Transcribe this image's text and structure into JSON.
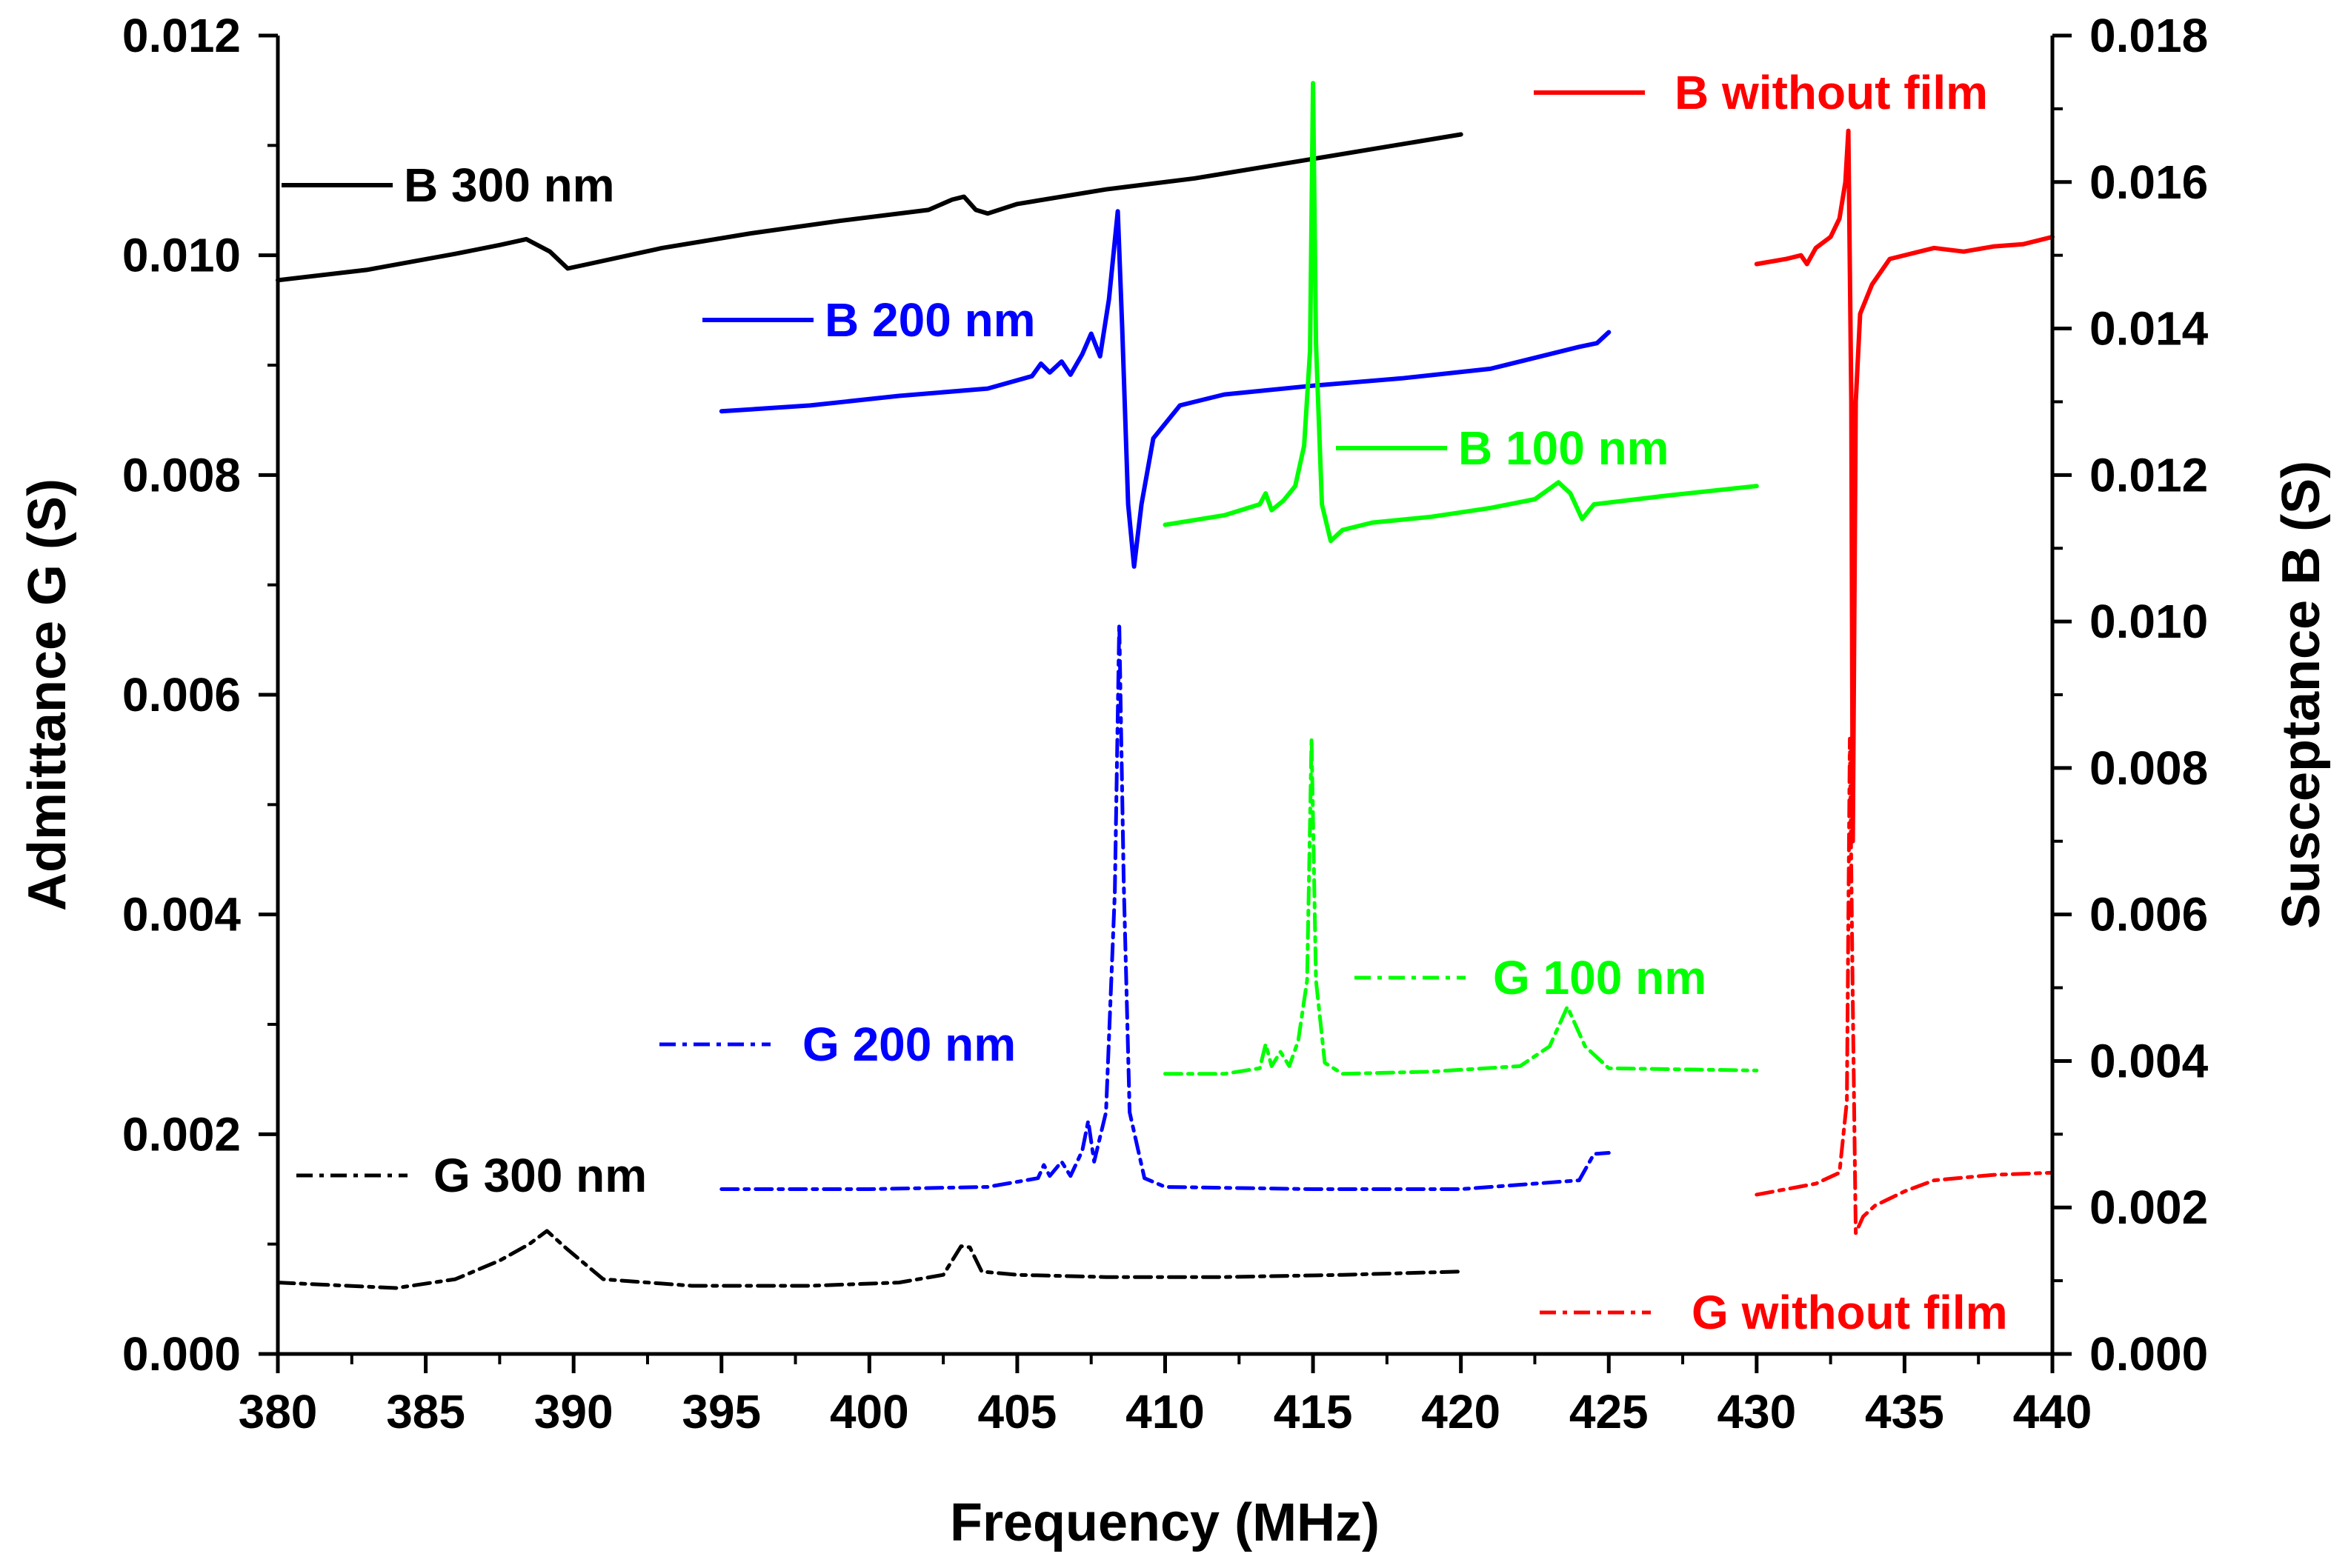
{
  "chart_data": {
    "type": "line",
    "title": "",
    "xlabel": "Frequency (MHz)",
    "ylabel_left": "Admittance G (S)",
    "ylabel_right": "Susceptance B (S)",
    "xlim": [
      380,
      440
    ],
    "ylim_left": [
      0,
      0.012
    ],
    "ylim_right": [
      0,
      0.018
    ],
    "x_ticks": [
      "380",
      "385",
      "390",
      "395",
      "400",
      "405",
      "410",
      "415",
      "420",
      "425",
      "430",
      "435",
      "440"
    ],
    "y_left_ticks": [
      "0.000",
      "0.002",
      "0.004",
      "0.006",
      "0.008",
      "0.010",
      "0.012"
    ],
    "y_right_ticks": [
      "0.000",
      "0.002",
      "0.004",
      "0.006",
      "0.008",
      "0.010",
      "0.012",
      "0.014",
      "0.016",
      "0.018"
    ],
    "grid": false,
    "series": [
      {
        "name": "B 300 nm",
        "axis": "right",
        "color": "#000000",
        "dash": "solid",
        "points": [
          [
            380,
            0.01466
          ],
          [
            383,
            0.0148
          ],
          [
            386,
            0.01502
          ],
          [
            387.5,
            0.01514
          ],
          [
            388.4,
            0.01522
          ],
          [
            389.2,
            0.01505
          ],
          [
            389.8,
            0.01482
          ],
          [
            390.5,
            0.01488
          ],
          [
            393,
            0.0151
          ],
          [
            396,
            0.0153
          ],
          [
            399,
            0.01547
          ],
          [
            402,
            0.01562
          ],
          [
            402.8,
            0.01576
          ],
          [
            403.2,
            0.0158
          ],
          [
            403.6,
            0.01562
          ],
          [
            404,
            0.01557
          ],
          [
            405,
            0.0157
          ],
          [
            408,
            0.0159
          ],
          [
            411,
            0.01605
          ],
          [
            414,
            0.01625
          ],
          [
            417,
            0.01645
          ],
          [
            420,
            0.01665
          ]
        ]
      },
      {
        "name": "G 300 nm",
        "axis": "left",
        "color": "#000000",
        "dash": "dashdot",
        "points": [
          [
            380,
            0.00065
          ],
          [
            384,
            0.0006
          ],
          [
            386,
            0.00068
          ],
          [
            387.5,
            0.00085
          ],
          [
            388.5,
            0.001
          ],
          [
            389.1,
            0.00112
          ],
          [
            389.8,
            0.00095
          ],
          [
            391,
            0.00068
          ],
          [
            394,
            0.00062
          ],
          [
            398,
            0.00062
          ],
          [
            401,
            0.00065
          ],
          [
            402.5,
            0.00072
          ],
          [
            403.1,
            0.00098
          ],
          [
            403.4,
            0.00097
          ],
          [
            403.8,
            0.00075
          ],
          [
            405,
            0.00072
          ],
          [
            408,
            0.0007
          ],
          [
            412,
            0.0007
          ],
          [
            416,
            0.00072
          ],
          [
            420,
            0.00075
          ]
        ]
      },
      {
        "name": "B 200 nm",
        "axis": "right",
        "color": "#0000ff",
        "dash": "solid",
        "points": [
          [
            395,
            0.01287
          ],
          [
            398,
            0.01295
          ],
          [
            401,
            0.01308
          ],
          [
            404,
            0.01318
          ],
          [
            405.5,
            0.01335
          ],
          [
            405.8,
            0.01352
          ],
          [
            406.1,
            0.0134
          ],
          [
            406.5,
            0.01355
          ],
          [
            406.8,
            0.01337
          ],
          [
            407.2,
            0.01365
          ],
          [
            407.5,
            0.01393
          ],
          [
            407.8,
            0.01362
          ],
          [
            408.1,
            0.0144
          ],
          [
            408.4,
            0.0156
          ],
          [
            408.55,
            0.014
          ],
          [
            408.75,
            0.0116
          ],
          [
            408.95,
            0.01075
          ],
          [
            409.2,
            0.0116
          ],
          [
            409.6,
            0.0125
          ],
          [
            410.5,
            0.01295
          ],
          [
            412,
            0.0131
          ],
          [
            415,
            0.01322
          ],
          [
            418,
            0.01332
          ],
          [
            421,
            0.01345
          ],
          [
            424,
            0.01375
          ],
          [
            424.6,
            0.0138
          ],
          [
            425,
            0.01395
          ]
        ]
      },
      {
        "name": "G 200 nm",
        "axis": "left",
        "color": "#0000ff",
        "dash": "dashdot",
        "points": [
          [
            395,
            0.0015
          ],
          [
            400,
            0.0015
          ],
          [
            404,
            0.00152
          ],
          [
            405.7,
            0.0016
          ],
          [
            405.9,
            0.00172
          ],
          [
            406.1,
            0.00162
          ],
          [
            406.5,
            0.00175
          ],
          [
            406.8,
            0.00162
          ],
          [
            407.2,
            0.00185
          ],
          [
            407.4,
            0.00212
          ],
          [
            407.6,
            0.00175
          ],
          [
            408.0,
            0.0022
          ],
          [
            408.3,
            0.0042
          ],
          [
            408.45,
            0.00665
          ],
          [
            408.6,
            0.0043
          ],
          [
            408.8,
            0.0022
          ],
          [
            409.3,
            0.0016
          ],
          [
            410,
            0.00152
          ],
          [
            415,
            0.0015
          ],
          [
            420,
            0.0015
          ],
          [
            424,
            0.00158
          ],
          [
            424.5,
            0.00182
          ],
          [
            425,
            0.00183
          ]
        ]
      },
      {
        "name": "B 100 nm",
        "axis": "right",
        "color": "#00ff00",
        "dash": "solid",
        "points": [
          [
            410,
            0.01132
          ],
          [
            412,
            0.01145
          ],
          [
            413.2,
            0.0116
          ],
          [
            413.4,
            0.01175
          ],
          [
            413.6,
            0.01152
          ],
          [
            414,
            0.01165
          ],
          [
            414.4,
            0.01185
          ],
          [
            414.7,
            0.0124
          ],
          [
            414.9,
            0.0137
          ],
          [
            415.0,
            0.01735
          ],
          [
            415.1,
            0.0138
          ],
          [
            415.3,
            0.0116
          ],
          [
            415.6,
            0.0111
          ],
          [
            416,
            0.01125
          ],
          [
            417,
            0.01135
          ],
          [
            419,
            0.01143
          ],
          [
            421,
            0.01155
          ],
          [
            422.5,
            0.01167
          ],
          [
            423.3,
            0.0119
          ],
          [
            423.7,
            0.01175
          ],
          [
            424.1,
            0.0114
          ],
          [
            424.5,
            0.0116
          ],
          [
            427,
            0.01172
          ],
          [
            430,
            0.01185
          ]
        ]
      },
      {
        "name": "G 100 nm",
        "axis": "left",
        "color": "#00ff00",
        "dash": "dashdot",
        "points": [
          [
            410,
            0.00255
          ],
          [
            412,
            0.00255
          ],
          [
            413.2,
            0.0026
          ],
          [
            413.4,
            0.00282
          ],
          [
            413.6,
            0.00262
          ],
          [
            413.9,
            0.00275
          ],
          [
            414.2,
            0.00262
          ],
          [
            414.5,
            0.00285
          ],
          [
            414.8,
            0.0034
          ],
          [
            414.95,
            0.0056
          ],
          [
            415.1,
            0.0034
          ],
          [
            415.4,
            0.00265
          ],
          [
            416,
            0.00255
          ],
          [
            419,
            0.00257
          ],
          [
            422,
            0.00262
          ],
          [
            423,
            0.0028
          ],
          [
            423.6,
            0.00316
          ],
          [
            424.2,
            0.0028
          ],
          [
            425,
            0.0026
          ],
          [
            430,
            0.00258
          ]
        ]
      },
      {
        "name": "B without film",
        "axis": "right",
        "color": "#ff0000",
        "dash": "solid",
        "points": [
          [
            430,
            0.01488
          ],
          [
            431,
            0.01495
          ],
          [
            431.5,
            0.015
          ],
          [
            431.7,
            0.01488
          ],
          [
            432,
            0.0151
          ],
          [
            432.5,
            0.01525
          ],
          [
            432.8,
            0.0155
          ],
          [
            433.0,
            0.016
          ],
          [
            433.1,
            0.0167
          ],
          [
            433.2,
            0.013
          ],
          [
            433.25,
            0.007
          ],
          [
            433.35,
            0.013
          ],
          [
            433.5,
            0.0142
          ],
          [
            433.9,
            0.0146
          ],
          [
            434.5,
            0.01495
          ],
          [
            436,
            0.0151
          ],
          [
            437,
            0.01505
          ],
          [
            438,
            0.01512
          ],
          [
            439,
            0.01515
          ],
          [
            440,
            0.01525
          ]
        ]
      },
      {
        "name": "G without film",
        "axis": "left",
        "color": "#ff0000",
        "dash": "dashdot",
        "points": [
          [
            430,
            0.00145
          ],
          [
            431,
            0.0015
          ],
          [
            432,
            0.00155
          ],
          [
            432.8,
            0.00165
          ],
          [
            433.05,
            0.0023
          ],
          [
            433.15,
            0.0056
          ],
          [
            433.25,
            0.0032
          ],
          [
            433.35,
            0.0011
          ],
          [
            433.6,
            0.00125
          ],
          [
            434,
            0.00135
          ],
          [
            435,
            0.00148
          ],
          [
            436,
            0.00158
          ],
          [
            438,
            0.00163
          ],
          [
            440,
            0.00165
          ]
        ]
      }
    ],
    "legend": [
      {
        "label": "B 300 nm",
        "color": "#000000",
        "dash": "solid"
      },
      {
        "label": "B 200 nm",
        "color": "#0000ff",
        "dash": "solid"
      },
      {
        "label": "B 100 nm",
        "color": "#00ff00",
        "dash": "solid"
      },
      {
        "label": "B without film",
        "color": "#ff0000",
        "dash": "solid"
      },
      {
        "label": "G 300 nm",
        "color": "#000000",
        "dash": "dashdot"
      },
      {
        "label": "G 200 nm",
        "color": "#0000ff",
        "dash": "dashdot"
      },
      {
        "label": "G 100 nm",
        "color": "#00ff00",
        "dash": "dashdot"
      },
      {
        "label": "G without film",
        "color": "#ff0000",
        "dash": "dashdot"
      }
    ]
  }
}
